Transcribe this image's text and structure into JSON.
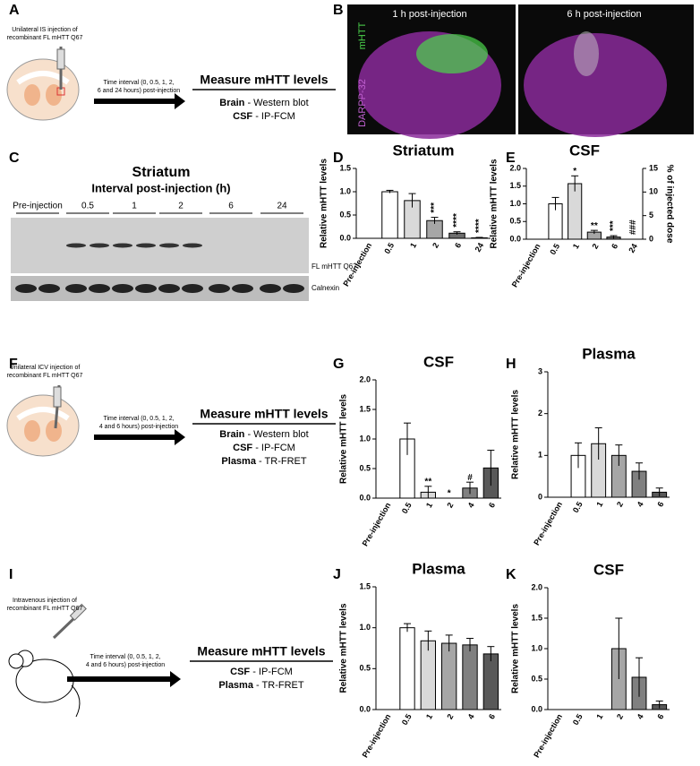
{
  "panel_labels": [
    "A",
    "B",
    "C",
    "D",
    "E",
    "F",
    "G",
    "H",
    "I",
    "J",
    "K"
  ],
  "schematics": [
    {
      "injection": [
        "Unilateral IS injection of",
        "recombinant FL mHTT Q67"
      ],
      "interval": [
        "Time interval (0, 0.5, 1, 2,",
        "6 and 24 hours) post-injection"
      ],
      "measure": "Measure mHTT levels",
      "methods": [
        {
          "name": "Brain",
          "method": " - Western blot"
        },
        {
          "name": "CSF",
          "method": " - IP-FCM"
        }
      ]
    },
    {
      "injection": [
        "Unilateral ICV injection of",
        "recombinant FL mHTT Q67"
      ],
      "interval": [
        "Time interval (0, 0.5, 1, 2,",
        "4 and 6 hours) post-injection"
      ],
      "measure": "Measure mHTT levels",
      "methods": [
        {
          "name": "Brain",
          "method": " - Western blot"
        },
        {
          "name": "CSF",
          "method": " - IP-FCM"
        },
        {
          "name": "Plasma",
          "method": " - TR-FRET"
        }
      ]
    },
    {
      "injection": [
        "Intravenous injection of",
        "recombinant FL mHTT Q67"
      ],
      "interval": [
        "Time interval (0, 0.5, 1, 2,",
        "4 and 6 hours) post-injection"
      ],
      "measure": "Measure mHTT levels",
      "methods": [
        {
          "name": "CSF",
          "method": " - IP-FCM"
        },
        {
          "name": "Plasma",
          "method": " - TR-FRET"
        }
      ]
    }
  ],
  "images": {
    "left": "1 h post-injection",
    "right": "6 h post-injection",
    "stain_green": "mHTT",
    "stain_purple": "DARPP-32"
  },
  "blot": {
    "title": "Striatum",
    "subtitle": "Interval post-injection (h)",
    "lanes": [
      "Pre-injection",
      "0.5",
      "1",
      "2",
      "6",
      "24"
    ],
    "bands": [
      "FL mHTT Q67",
      "Calnexin"
    ]
  },
  "chart_data": [
    {
      "type": "bar",
      "title": "Striatum",
      "ylabel": "Relative mHTT levels",
      "categories": [
        "Pre-injection",
        "0.5",
        "1",
        "2",
        "6",
        "24"
      ],
      "values": [
        0,
        1.0,
        0.81,
        0.38,
        0.11,
        0.01
      ],
      "errors": [
        0,
        0.03,
        0.15,
        0.07,
        0.03,
        0.01
      ],
      "annotations": [
        null,
        null,
        null,
        "***",
        "****",
        "****"
      ],
      "colors": [
        "#ffffff",
        "#ffffff",
        "#d9d9d9",
        "#a6a6a6",
        "#6e6e6e",
        "#404040"
      ],
      "ylim": [
        0,
        1.5
      ],
      "yticks": [
        {
          "value": 0,
          "label": "0.0"
        },
        {
          "value": 0.5,
          "label": "0.5"
        },
        {
          "value": 1,
          "label": "1.0"
        },
        {
          "value": 1.5,
          "label": "1.5"
        }
      ]
    },
    {
      "type": "bar",
      "title": "CSF",
      "ylabel": "Relative mHTT levels",
      "y2label": "% of injected dose",
      "categories": [
        "Pre-injection",
        "0.5",
        "1",
        "2",
        "6",
        "24"
      ],
      "values": [
        0,
        1.0,
        1.57,
        0.2,
        0.06,
        0
      ],
      "errors": [
        0,
        0.18,
        0.22,
        0.05,
        0.04,
        0
      ],
      "annotations": [
        null,
        null,
        "*",
        "**",
        "***",
        "###"
      ],
      "colors": [
        "#ffffff",
        "#ffffff",
        "#d9d9d9",
        "#a6a6a6",
        "#6e6e6e",
        "#404040"
      ],
      "ylim": [
        0,
        2
      ],
      "yticks": [
        {
          "value": 0,
          "label": "0.0"
        },
        {
          "value": 0.5,
          "label": "0.5"
        },
        {
          "value": 1,
          "label": "1.0"
        },
        {
          "value": 1.5,
          "label": "1.5"
        },
        {
          "value": 2,
          "label": "2.0"
        }
      ],
      "y2lim": [
        0,
        15
      ],
      "y2ticks": [
        0,
        5,
        10,
        15
      ]
    },
    {
      "type": "bar",
      "title": "CSF",
      "ylabel": "Relative mHTT levels",
      "categories": [
        "Pre-injection",
        "0.5",
        "1",
        "2",
        "4",
        "6"
      ],
      "values": [
        0,
        1.0,
        0.1,
        0,
        0.17,
        0.51
      ],
      "errors": [
        0,
        0.27,
        0.1,
        0,
        0.1,
        0.3
      ],
      "annotations": [
        null,
        null,
        "**",
        "*",
        "#",
        null
      ],
      "colors": [
        "#ffffff",
        "#ffffff",
        "#d9d9d9",
        "#a6a6a6",
        "#808080",
        "#595959"
      ],
      "ylim": [
        0,
        2
      ],
      "yticks": [
        {
          "value": 0,
          "label": "0.0"
        },
        {
          "value": 0.5,
          "label": "0.5"
        },
        {
          "value": 1,
          "label": "1.0"
        },
        {
          "value": 1.5,
          "label": "1.5"
        },
        {
          "value": 2,
          "label": "2.0"
        }
      ]
    },
    {
      "type": "bar",
      "title": "Plasma",
      "ylabel": "Relative mHTT levels",
      "categories": [
        "Pre-injection",
        "0.5",
        "1",
        "2",
        "4",
        "6"
      ],
      "values": [
        0,
        1.0,
        1.28,
        1.0,
        0.62,
        0.12
      ],
      "errors": [
        0,
        0.3,
        0.38,
        0.25,
        0.2,
        0.1
      ],
      "annotations": [
        null,
        null,
        null,
        null,
        null,
        null
      ],
      "colors": [
        "#ffffff",
        "#ffffff",
        "#d9d9d9",
        "#a6a6a6",
        "#808080",
        "#595959"
      ],
      "ylim": [
        0,
        3
      ],
      "yticks": [
        0,
        1,
        2,
        3
      ]
    },
    {
      "type": "bar",
      "title": "Plasma",
      "ylabel": "Relative mHTT levels",
      "categories": [
        "Pre-injection",
        "0.5",
        "1",
        "2",
        "4",
        "6"
      ],
      "values": [
        0,
        1.0,
        0.84,
        0.81,
        0.79,
        0.68
      ],
      "errors": [
        0,
        0.05,
        0.12,
        0.1,
        0.08,
        0.09
      ],
      "annotations": [
        null,
        null,
        null,
        null,
        null,
        null
      ],
      "colors": [
        "#ffffff",
        "#ffffff",
        "#d9d9d9",
        "#a6a6a6",
        "#808080",
        "#595959"
      ],
      "ylim": [
        0,
        1.5
      ],
      "yticks": [
        {
          "value": 0,
          "label": "0.0"
        },
        {
          "value": 0.5,
          "label": "0.5"
        },
        {
          "value": 1,
          "label": "1.0"
        },
        {
          "value": 1.5,
          "label": "1.5"
        }
      ]
    },
    {
      "type": "bar",
      "title": "CSF",
      "ylabel": "Relative mHTT levels",
      "categories": [
        "Pre-injection",
        "0.5",
        "1",
        "2",
        "4",
        "6"
      ],
      "values": [
        0,
        0,
        0,
        1.0,
        0.53,
        0.08
      ],
      "errors": [
        0,
        0,
        0,
        0.5,
        0.32,
        0.06
      ],
      "annotations": [
        null,
        null,
        null,
        null,
        null,
        null
      ],
      "colors": [
        "#ffffff",
        "#ffffff",
        "#d9d9d9",
        "#a6a6a6",
        "#808080",
        "#595959"
      ],
      "ylim": [
        0,
        2
      ],
      "yticks": [
        {
          "value": 0,
          "label": "0.0"
        },
        {
          "value": 0.5,
          "label": "0.5"
        },
        {
          "value": 1,
          "label": "1.0"
        },
        {
          "value": 1.5,
          "label": "1.5"
        },
        {
          "value": 2,
          "label": "2.0"
        }
      ]
    }
  ]
}
